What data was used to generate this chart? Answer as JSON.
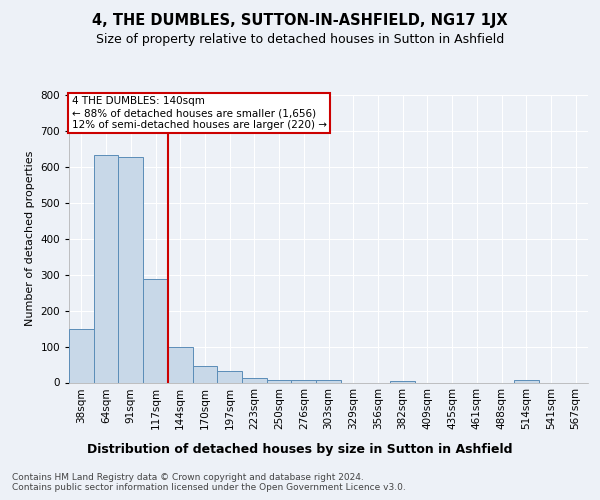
{
  "title": "4, THE DUMBLES, SUTTON-IN-ASHFIELD, NG17 1JX",
  "subtitle": "Size of property relative to detached houses in Sutton in Ashfield",
  "xlabel": "Distribution of detached houses by size in Sutton in Ashfield",
  "ylabel": "Number of detached properties",
  "bar_labels": [
    "38sqm",
    "64sqm",
    "91sqm",
    "117sqm",
    "144sqm",
    "170sqm",
    "197sqm",
    "223sqm",
    "250sqm",
    "276sqm",
    "303sqm",
    "329sqm",
    "356sqm",
    "382sqm",
    "409sqm",
    "435sqm",
    "461sqm",
    "488sqm",
    "514sqm",
    "541sqm",
    "567sqm"
  ],
  "bar_values": [
    148,
    632,
    628,
    288,
    100,
    47,
    33,
    12,
    8,
    8,
    8,
    0,
    0,
    5,
    0,
    0,
    0,
    0,
    8,
    0,
    0
  ],
  "bar_color": "#c8d8e8",
  "bar_edge_color": "#5b8db8",
  "bar_edge_width": 0.7,
  "vline_color": "#cc0000",
  "vline_index": 4,
  "annotation_title": "4 THE DUMBLES: 140sqm",
  "annotation_line1": "← 88% of detached houses are smaller (1,656)",
  "annotation_line2": "12% of semi-detached houses are larger (220) →",
  "annotation_box_color": "#cc0000",
  "ylim": [
    0,
    800
  ],
  "yticks": [
    0,
    100,
    200,
    300,
    400,
    500,
    600,
    700,
    800
  ],
  "bg_color": "#edf1f7",
  "plot_bg_color": "#edf1f7",
  "grid_color": "#ffffff",
  "footer_line1": "Contains HM Land Registry data © Crown copyright and database right 2024.",
  "footer_line2": "Contains public sector information licensed under the Open Government Licence v3.0.",
  "title_fontsize": 10.5,
  "subtitle_fontsize": 9,
  "xlabel_fontsize": 9,
  "ylabel_fontsize": 8,
  "tick_fontsize": 7.5,
  "annotation_fontsize": 7.5,
  "footer_fontsize": 6.5
}
